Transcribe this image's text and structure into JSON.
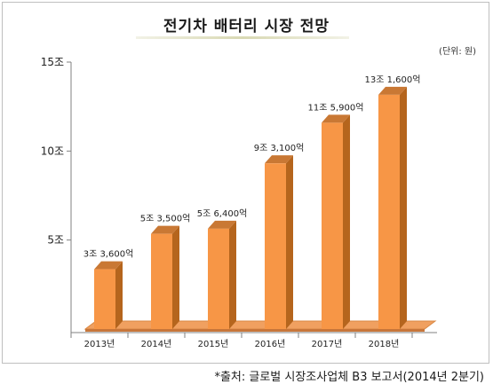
{
  "title": "전기차 배터리 시장 전망",
  "unit": "(단위: 원)",
  "source": "*출처: 글로벌 시장조사업체 B3 보고서(2014년 2분기)",
  "colors": {
    "bar_front": "#f79646",
    "bar_side": "#b5651d",
    "bar_top": "#c97834",
    "floor": "#f0a060",
    "axis": "#808080"
  },
  "chart_data": {
    "type": "bar",
    "categories": [
      "2013년",
      "2014년",
      "2015년",
      "2016년",
      "2017년",
      "2018년"
    ],
    "values": [
      3.36,
      5.35,
      5.64,
      9.31,
      11.59,
      13.16
    ],
    "data_labels": [
      "3조 3,600억",
      "5조 3,500억",
      "5조 6,400억",
      "9조 3,100억",
      "11조 5,900억",
      "13조 1,600억"
    ],
    "y_ticks": [
      5,
      10,
      15
    ],
    "y_tick_labels": [
      "5조",
      "10조",
      "15조"
    ],
    "ylim": [
      0,
      15
    ],
    "grid": false,
    "legend": "none"
  }
}
